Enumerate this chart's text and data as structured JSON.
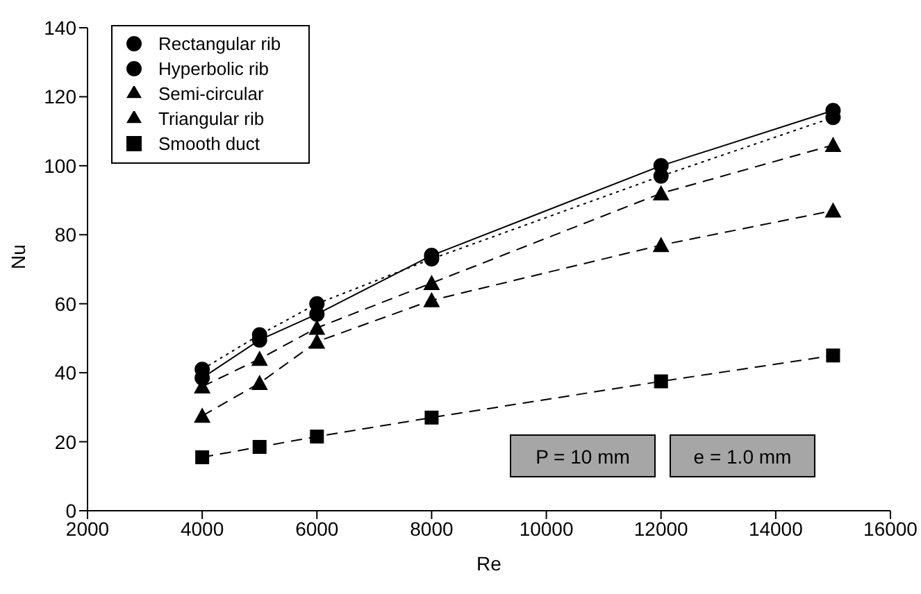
{
  "chart_data": {
    "type": "line",
    "xlabel": "Re",
    "ylabel": "Nu",
    "x": [
      4000,
      5000,
      6000,
      8000,
      12000,
      15000
    ],
    "xlim": [
      2000,
      16000
    ],
    "xticks": [
      2000,
      4000,
      6000,
      8000,
      10000,
      12000,
      14000,
      16000
    ],
    "ylim": [
      0,
      140
    ],
    "yticks": [
      0,
      20,
      40,
      60,
      80,
      100,
      120,
      140
    ],
    "grid": false,
    "legend": "top left",
    "series": [
      {
        "name": "Rectangular rib",
        "color": "#000000",
        "marker": "circle",
        "line_style": "solid",
        "values": [
          38.5,
          49.5,
          57,
          74,
          100,
          116
        ]
      },
      {
        "name": "Hyperbolic rib",
        "color": "#000000",
        "marker": "circle",
        "line_style": "dotted",
        "values": [
          41,
          51,
          60,
          73,
          97,
          114
        ]
      },
      {
        "name": "Semi-circular",
        "color": "#000000",
        "marker": "triangle",
        "line_style": "dashed",
        "values": [
          27.5,
          37,
          49,
          61,
          77,
          87
        ]
      },
      {
        "name": "Triangular rib",
        "color": "#000000",
        "marker": "triangle",
        "line_style": "dashed",
        "values": [
          36,
          44,
          53,
          66,
          92,
          106
        ]
      },
      {
        "name": "Smooth duct",
        "color": "#000000",
        "marker": "square",
        "line_style": "dashed",
        "values": [
          15.5,
          18.5,
          21.5,
          27,
          37.5,
          45
        ]
      }
    ],
    "annotations": [
      "P = 10 mm",
      "e = 1.0 mm"
    ]
  }
}
